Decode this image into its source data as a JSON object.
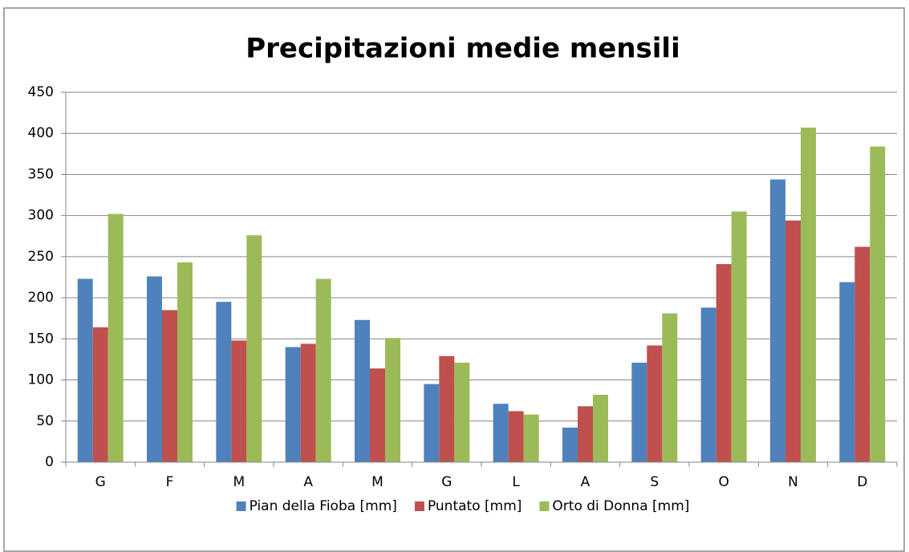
{
  "chart_data": {
    "type": "bar",
    "title": "Precipitazioni medie mensili",
    "categories": [
      "G",
      "F",
      "M",
      "A",
      "M",
      "G",
      "L",
      "A",
      "S",
      "O",
      "N",
      "D"
    ],
    "series": [
      {
        "name": "Pian della Fioba [mm]",
        "color": "#4f81bd",
        "values": [
          223,
          226,
          195,
          140,
          173,
          95,
          71,
          42,
          121,
          188,
          344,
          219
        ]
      },
      {
        "name": "Puntato [mm]",
        "color": "#c0504d",
        "values": [
          164,
          185,
          148,
          144,
          114,
          129,
          62,
          68,
          142,
          241,
          294,
          262
        ]
      },
      {
        "name": "Orto di Donna [mm]",
        "color": "#9bbb59",
        "values": [
          302,
          243,
          276,
          223,
          151,
          121,
          58,
          82,
          181,
          305,
          407,
          384
        ]
      }
    ],
    "ylim": [
      0,
      450
    ],
    "yticks": [
      0,
      50,
      100,
      150,
      200,
      250,
      300,
      350,
      400,
      450
    ],
    "grid": true,
    "legend": "bottom"
  }
}
